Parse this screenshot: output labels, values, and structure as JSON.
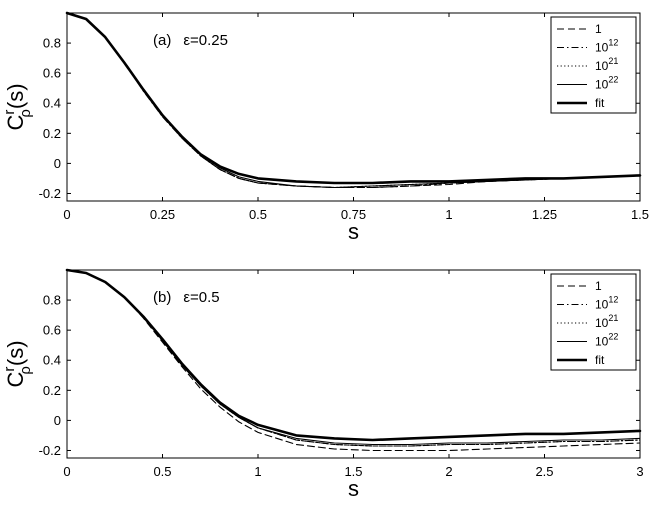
{
  "chart_data": [
    {
      "type": "line",
      "panel_label": "(a)",
      "annotation": "ε=0.25",
      "xlabel": "s",
      "ylabel": {
        "main": "C",
        "sup": "r",
        "sub": "ρ",
        "tail": "(s)"
      },
      "xlim": [
        0,
        1.5
      ],
      "ylim": [
        -0.25,
        1.0
      ],
      "xticks": [
        0,
        0.25,
        0.5,
        0.75,
        1,
        1.25,
        1.5
      ],
      "xtick_labels": [
        "0",
        "0.25",
        "0.5",
        "0.75",
        "1",
        "1.25",
        "1.5"
      ],
      "yticks": [
        -0.2,
        0,
        0.2,
        0.4,
        0.6,
        0.8
      ],
      "ytick_labels": [
        "-0.2",
        "0",
        "0.2",
        "0.4",
        "0.6",
        "0.8"
      ],
      "legend_position": "top-right",
      "series": [
        {
          "name": "1",
          "style": "dashed",
          "x": [
            0,
            0.05,
            0.1,
            0.15,
            0.2,
            0.25,
            0.3,
            0.35,
            0.4,
            0.45,
            0.5,
            0.6,
            0.7,
            0.8,
            0.9,
            1.0,
            1.1,
            1.2,
            1.3,
            1.4,
            1.5
          ],
          "y": [
            1.0,
            0.96,
            0.84,
            0.67,
            0.49,
            0.32,
            0.17,
            0.05,
            -0.04,
            -0.1,
            -0.13,
            -0.15,
            -0.16,
            -0.16,
            -0.15,
            -0.14,
            -0.12,
            -0.11,
            -0.1,
            -0.09,
            -0.08
          ]
        },
        {
          "name": "10^12",
          "style": "dashdot",
          "x": [
            0,
            0.05,
            0.1,
            0.15,
            0.2,
            0.25,
            0.3,
            0.35,
            0.4,
            0.45,
            0.5,
            0.6,
            0.7,
            0.8,
            0.9,
            1.0,
            1.1,
            1.2,
            1.3,
            1.4,
            1.5
          ],
          "y": [
            1.0,
            0.96,
            0.84,
            0.67,
            0.48,
            0.31,
            0.17,
            0.05,
            -0.04,
            -0.1,
            -0.13,
            -0.15,
            -0.16,
            -0.16,
            -0.15,
            -0.13,
            -0.12,
            -0.11,
            -0.1,
            -0.09,
            -0.08
          ]
        },
        {
          "name": "10^21",
          "style": "dotted",
          "x": [
            0,
            0.05,
            0.1,
            0.15,
            0.2,
            0.25,
            0.3,
            0.35,
            0.4,
            0.45,
            0.5,
            0.6,
            0.7,
            0.8,
            0.9,
            1.0,
            1.1,
            1.2,
            1.3,
            1.4,
            1.5
          ],
          "y": [
            1.0,
            0.96,
            0.84,
            0.67,
            0.49,
            0.32,
            0.17,
            0.05,
            -0.04,
            -0.1,
            -0.13,
            -0.15,
            -0.16,
            -0.15,
            -0.14,
            -0.13,
            -0.12,
            -0.11,
            -0.1,
            -0.09,
            -0.08
          ]
        },
        {
          "name": "10^22",
          "style": "solid",
          "x": [
            0,
            0.05,
            0.1,
            0.15,
            0.2,
            0.25,
            0.3,
            0.35,
            0.4,
            0.45,
            0.5,
            0.6,
            0.7,
            0.8,
            0.9,
            1.0,
            1.1,
            1.2,
            1.3,
            1.4,
            1.5
          ],
          "y": [
            1.0,
            0.96,
            0.84,
            0.67,
            0.49,
            0.32,
            0.18,
            0.06,
            -0.03,
            -0.09,
            -0.12,
            -0.15,
            -0.16,
            -0.15,
            -0.14,
            -0.13,
            -0.12,
            -0.11,
            -0.1,
            -0.09,
            -0.08
          ]
        },
        {
          "name": "fit",
          "style": "thick",
          "x": [
            0,
            0.05,
            0.1,
            0.15,
            0.2,
            0.25,
            0.3,
            0.35,
            0.4,
            0.45,
            0.5,
            0.6,
            0.7,
            0.8,
            0.9,
            1.0,
            1.1,
            1.2,
            1.3,
            1.4,
            1.5
          ],
          "y": [
            1.0,
            0.96,
            0.84,
            0.67,
            0.49,
            0.32,
            0.18,
            0.06,
            -0.02,
            -0.07,
            -0.1,
            -0.12,
            -0.13,
            -0.13,
            -0.12,
            -0.12,
            -0.11,
            -0.1,
            -0.1,
            -0.09,
            -0.08
          ]
        }
      ]
    },
    {
      "type": "line",
      "panel_label": "(b)",
      "annotation": "ε=0.5",
      "xlabel": "s",
      "ylabel": {
        "main": "C",
        "sup": "r",
        "sub": "ρ",
        "tail": "(s)"
      },
      "xlim": [
        0,
        3
      ],
      "ylim": [
        -0.25,
        1.0
      ],
      "xticks": [
        0,
        0.5,
        1,
        1.5,
        2,
        2.5,
        3
      ],
      "xtick_labels": [
        "0",
        "0.5",
        "1",
        "1.5",
        "2",
        "2.5",
        "3"
      ],
      "yticks": [
        -0.2,
        0,
        0.2,
        0.4,
        0.6,
        0.8
      ],
      "ytick_labels": [
        "-0.2",
        "0",
        "0.2",
        "0.4",
        "0.6",
        "0.8"
      ],
      "legend_position": "top-right",
      "series": [
        {
          "name": "1",
          "style": "dashed",
          "x": [
            0,
            0.1,
            0.2,
            0.3,
            0.4,
            0.5,
            0.6,
            0.7,
            0.8,
            0.9,
            1.0,
            1.2,
            1.4,
            1.6,
            1.8,
            2.0,
            2.2,
            2.4,
            2.6,
            2.8,
            3.0
          ],
          "y": [
            1.0,
            0.98,
            0.92,
            0.82,
            0.68,
            0.52,
            0.36,
            0.21,
            0.09,
            -0.01,
            -0.08,
            -0.16,
            -0.19,
            -0.2,
            -0.2,
            -0.2,
            -0.19,
            -0.18,
            -0.17,
            -0.16,
            -0.15
          ]
        },
        {
          "name": "10^12",
          "style": "dashdot",
          "x": [
            0,
            0.1,
            0.2,
            0.3,
            0.4,
            0.5,
            0.6,
            0.7,
            0.8,
            0.9,
            1.0,
            1.2,
            1.4,
            1.6,
            1.8,
            2.0,
            2.2,
            2.4,
            2.6,
            2.8,
            3.0
          ],
          "y": [
            1.0,
            0.98,
            0.92,
            0.82,
            0.69,
            0.53,
            0.37,
            0.23,
            0.11,
            0.02,
            -0.05,
            -0.13,
            -0.16,
            -0.17,
            -0.17,
            -0.16,
            -0.16,
            -0.15,
            -0.14,
            -0.14,
            -0.13
          ]
        },
        {
          "name": "10^21",
          "style": "dotted",
          "x": [
            0,
            0.1,
            0.2,
            0.3,
            0.4,
            0.5,
            0.6,
            0.7,
            0.8,
            0.9,
            1.0,
            1.2,
            1.4,
            1.6,
            1.8,
            2.0,
            2.2,
            2.4,
            2.6,
            2.8,
            3.0
          ],
          "y": [
            1.0,
            0.98,
            0.92,
            0.82,
            0.69,
            0.53,
            0.37,
            0.23,
            0.11,
            0.02,
            -0.05,
            -0.13,
            -0.16,
            -0.17,
            -0.17,
            -0.16,
            -0.16,
            -0.15,
            -0.14,
            -0.14,
            -0.13
          ]
        },
        {
          "name": "10^22",
          "style": "solid",
          "x": [
            0,
            0.1,
            0.2,
            0.3,
            0.4,
            0.5,
            0.6,
            0.7,
            0.8,
            0.9,
            1.0,
            1.2,
            1.4,
            1.6,
            1.8,
            2.0,
            2.2,
            2.4,
            2.6,
            2.8,
            3.0
          ],
          "y": [
            1.0,
            0.98,
            0.92,
            0.82,
            0.69,
            0.53,
            0.37,
            0.23,
            0.11,
            0.02,
            -0.05,
            -0.12,
            -0.15,
            -0.16,
            -0.16,
            -0.15,
            -0.15,
            -0.14,
            -0.13,
            -0.13,
            -0.12
          ]
        },
        {
          "name": "fit",
          "style": "thick",
          "x": [
            0,
            0.1,
            0.2,
            0.3,
            0.4,
            0.5,
            0.6,
            0.7,
            0.8,
            0.9,
            1.0,
            1.2,
            1.4,
            1.6,
            1.8,
            2.0,
            2.2,
            2.4,
            2.6,
            2.8,
            3.0
          ],
          "y": [
            1.0,
            0.98,
            0.92,
            0.82,
            0.69,
            0.54,
            0.38,
            0.24,
            0.12,
            0.03,
            -0.03,
            -0.1,
            -0.12,
            -0.13,
            -0.12,
            -0.11,
            -0.1,
            -0.09,
            -0.09,
            -0.08,
            -0.07
          ]
        }
      ]
    }
  ]
}
